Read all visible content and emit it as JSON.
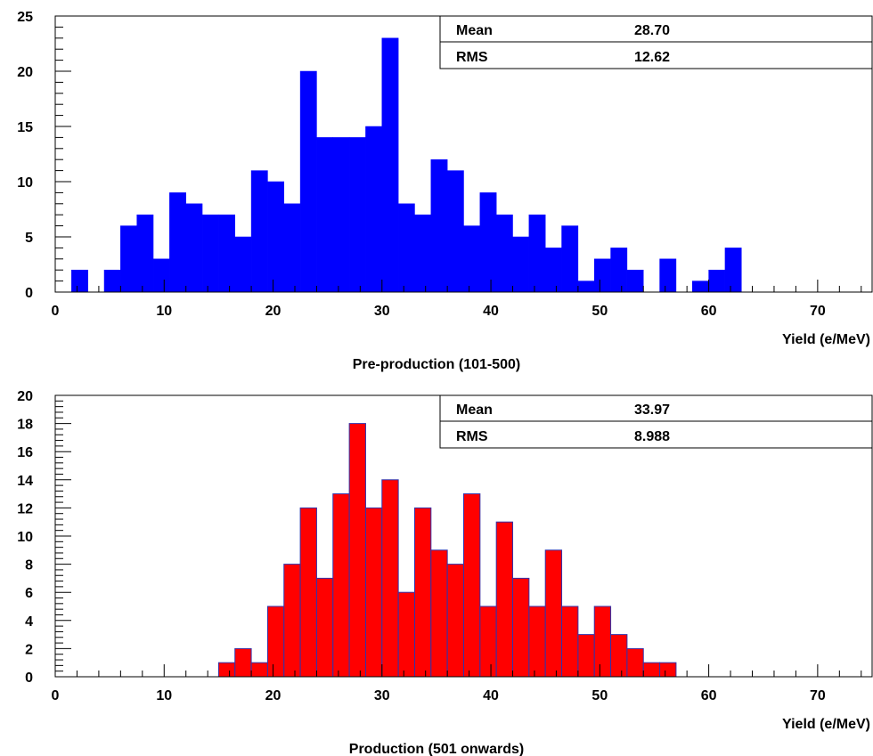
{
  "chart_data": [
    {
      "type": "bar",
      "caption": "Pre-production (101-500)",
      "xlabel": "Yield (e/MeV)",
      "xlim": [
        0,
        75
      ],
      "ylim": [
        0,
        25
      ],
      "bin_width": 1.5,
      "bin_start": 1.5,
      "values": [
        2,
        0,
        2,
        6,
        7,
        3,
        9,
        8,
        7,
        7,
        5,
        11,
        10,
        8,
        20,
        14,
        14,
        14,
        15,
        23,
        8,
        7,
        12,
        11,
        6,
        9,
        7,
        5,
        7,
        4,
        6,
        1,
        3,
        4,
        2,
        0,
        3,
        0,
        1,
        2,
        4
      ],
      "x_ticks": [
        0,
        10,
        20,
        30,
        40,
        50,
        60,
        70
      ],
      "y_ticks": [
        0,
        5,
        10,
        15,
        20,
        25
      ],
      "fill_color": "#0000ff",
      "stats": [
        {
          "label": "Mean",
          "value": "28.70"
        },
        {
          "label": "RMS",
          "value": "12.62"
        }
      ]
    },
    {
      "type": "bar",
      "caption": "Production (501 onwards)",
      "xlabel": "Yield (e/MeV)",
      "xlim": [
        0,
        75
      ],
      "ylim": [
        0,
        20
      ],
      "bin_width": 1.5,
      "bin_start": 15,
      "values": [
        1,
        2,
        1,
        5,
        8,
        12,
        7,
        13,
        18,
        12,
        14,
        6,
        12,
        9,
        8,
        13,
        5,
        11,
        7,
        5,
        9,
        5,
        3,
        5,
        3,
        2,
        1,
        1
      ],
      "x_ticks": [
        0,
        10,
        20,
        30,
        40,
        50,
        60,
        70
      ],
      "y_ticks": [
        0,
        2,
        4,
        6,
        8,
        10,
        12,
        14,
        16,
        18,
        20
      ],
      "fill_color": "#ff0000",
      "stats": [
        {
          "label": "Mean",
          "value": "33.97"
        },
        {
          "label": "RMS",
          "value": "8.988"
        }
      ]
    }
  ]
}
